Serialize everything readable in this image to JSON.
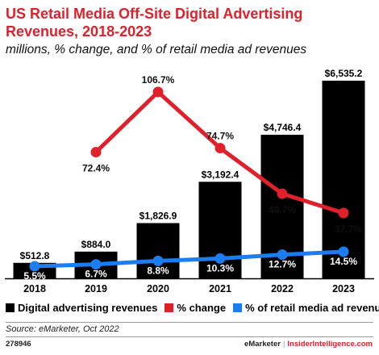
{
  "header": {
    "title": "US Retail Media Off-Site Digital Advertising Revenues, 2018-2023",
    "subtitle": "millions, % change, and % of retail media ad revenues"
  },
  "chart_data": {
    "type": "bar",
    "categories": [
      "2018",
      "2019",
      "2020",
      "2021",
      "2022",
      "2023"
    ],
    "series": [
      {
        "name": "Digital advertising revenues",
        "type": "bar",
        "color": "#000000",
        "values": [
          512.8,
          884.0,
          1826.9,
          3192.4,
          4746.4,
          6535.2
        ],
        "labels": [
          "$512.8",
          "$884.0",
          "$1,826.9",
          "$3,192.4",
          "$4,746.4",
          "$6,535.2"
        ]
      },
      {
        "name": "% change",
        "type": "line",
        "color": "#e0202a",
        "values": [
          null,
          72.4,
          106.7,
          74.7,
          48.7,
          37.7
        ],
        "labels": [
          "",
          "72.4%",
          "106.7%",
          "74.7%",
          "48.7%",
          "37.7%"
        ]
      },
      {
        "name": "% of retail media ad revenues",
        "type": "line",
        "color": "#1a7df0",
        "values": [
          5.5,
          6.7,
          8.8,
          10.3,
          12.7,
          14.5
        ],
        "labels": [
          "5.5%",
          "6.7%",
          "8.8%",
          "10.3%",
          "12.7%",
          "14.5%"
        ]
      }
    ],
    "ylim": [
      0,
      6535.2
    ],
    "pct_change_range": [
      37.7,
      106.7
    ],
    "share_range": [
      5.5,
      14.5
    ],
    "grid": false,
    "legend_position": "bottom"
  },
  "footer": {
    "source": "Source: eMarketer, Oct 2022",
    "chart_id": "278946",
    "brand_left": "eMarketer",
    "brand_sep": "|",
    "brand_right": "InsiderIntelligence.com"
  }
}
